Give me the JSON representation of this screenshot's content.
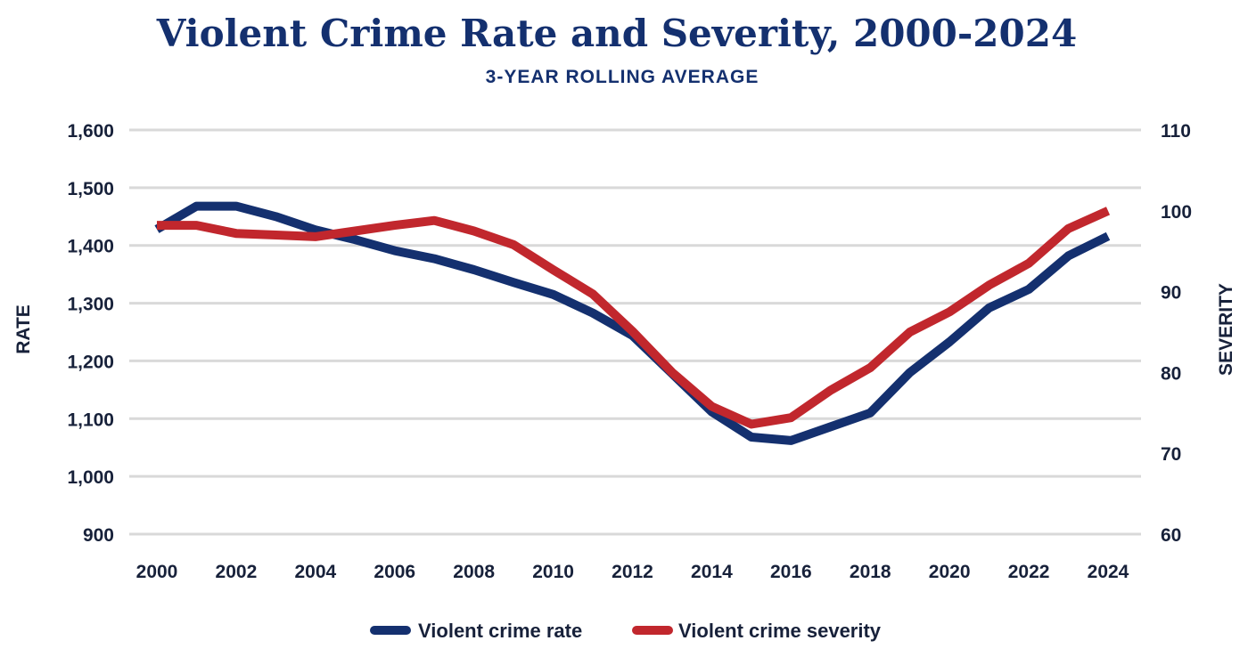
{
  "chart_data": {
    "type": "line",
    "title": "Violent Crime Rate and Severity, 2000-2024",
    "subtitle": "3-YEAR ROLLING AVERAGE",
    "ylabel": "RATE",
    "y2label": "SEVERITY",
    "x": [
      2000,
      2001,
      2002,
      2003,
      2004,
      2005,
      2006,
      2007,
      2008,
      2009,
      2010,
      2011,
      2012,
      2013,
      2014,
      2015,
      2016,
      2017,
      2018,
      2019,
      2020,
      2021,
      2022,
      2023,
      2024
    ],
    "xticks": [
      "2000",
      "2002",
      "2004",
      "2006",
      "2008",
      "2010",
      "2012",
      "2014",
      "2016",
      "2018",
      "2020",
      "2022",
      "2024"
    ],
    "ylim": [
      900,
      1600
    ],
    "yticks": [
      "900",
      "1,000",
      "1,100",
      "1,200",
      "1,300",
      "1,400",
      "1,500",
      "1,600"
    ],
    "y2lim": [
      60,
      110
    ],
    "y2ticks": [
      "60",
      "70",
      "80",
      "90",
      "100",
      "110"
    ],
    "grid": true,
    "legend_position": "bottom-center",
    "series": [
      {
        "name": "Violent crime rate",
        "axis": "left",
        "color": "#14306f",
        "values": [
          1428,
          1468,
          1468,
          1450,
          1427,
          1410,
          1391,
          1377,
          1358,
          1336,
          1315,
          1283,
          1244,
          1178,
          1112,
          1068,
          1062,
          1086,
          1110,
          1180,
          1233,
          1292,
          1324,
          1382,
          1416
        ]
      },
      {
        "name": "Violent crime severity",
        "axis": "right",
        "color": "#c1272d",
        "values": [
          98.2,
          98.2,
          97.2,
          97.0,
          96.8,
          97.5,
          98.2,
          98.8,
          97.5,
          95.8,
          92.7,
          89.7,
          85.1,
          80.0,
          75.8,
          73.6,
          74.4,
          77.8,
          80.6,
          85.0,
          87.5,
          90.8,
          93.5,
          97.8,
          100.0
        ]
      }
    ]
  }
}
